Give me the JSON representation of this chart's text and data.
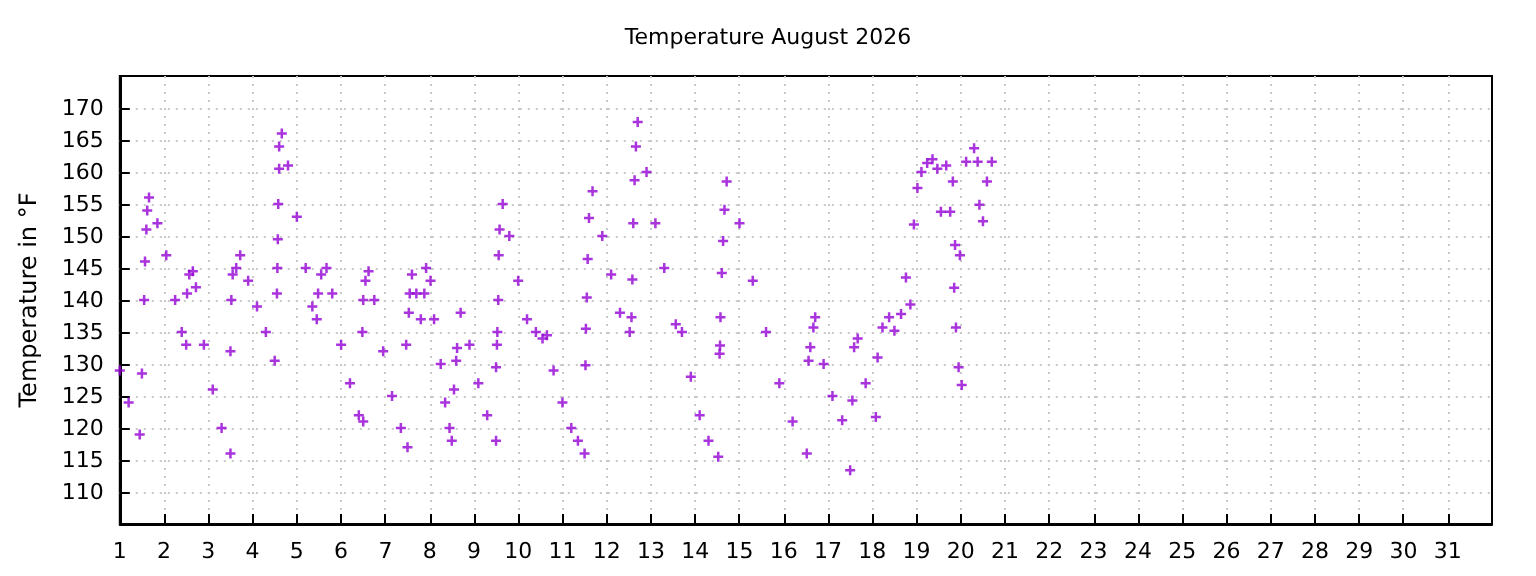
{
  "chart_data": {
    "type": "scatter",
    "title": "Temperature August 2026",
    "ylabel": "Temperature in °F",
    "xlim": [
      1,
      32
    ],
    "xticks": [
      1,
      2,
      3,
      4,
      5,
      6,
      7,
      8,
      9,
      10,
      11,
      12,
      13,
      14,
      15,
      16,
      17,
      18,
      19,
      20,
      21,
      22,
      23,
      24,
      25,
      26,
      27,
      28,
      29,
      30,
      31
    ],
    "ylim": [
      105,
      175
    ],
    "yticks": [
      110,
      115,
      120,
      125,
      130,
      135,
      140,
      145,
      150,
      155,
      160,
      165,
      170
    ],
    "grid": true,
    "marker": "cross",
    "series": [
      {
        "color": "#9400d3",
        "x": [
          1.0,
          1.2,
          1.45,
          1.5,
          1.55,
          1.57,
          1.6,
          1.62,
          1.66,
          1.85,
          2.05,
          2.25,
          2.4,
          2.5,
          2.52,
          2.57,
          2.65,
          2.72,
          2.9,
          3.1,
          3.3,
          3.5,
          3.5,
          3.52,
          3.55,
          3.63,
          3.72,
          3.9,
          4.1,
          4.3,
          4.5,
          4.55,
          4.56,
          4.57,
          4.58,
          4.6,
          4.6,
          4.66,
          4.8,
          5.0,
          5.2,
          5.35,
          5.45,
          5.48,
          5.55,
          5.67,
          5.8,
          6.0,
          6.2,
          6.4,
          6.5,
          6.48,
          6.5,
          6.55,
          6.62,
          6.75,
          6.95,
          7.15,
          7.35,
          7.5,
          7.47,
          7.53,
          7.55,
          7.6,
          7.7,
          7.8,
          7.88,
          7.92,
          8.02,
          8.1,
          8.25,
          8.35,
          8.45,
          8.5,
          8.55,
          8.6,
          8.62,
          8.7,
          8.9,
          9.1,
          9.3,
          9.5,
          9.5,
          9.52,
          9.53,
          9.55,
          9.56,
          9.58,
          9.65,
          9.8,
          10.0,
          10.2,
          10.4,
          10.55,
          10.65,
          10.8,
          11.0,
          11.2,
          11.35,
          11.5,
          11.52,
          11.53,
          11.55,
          11.57,
          11.6,
          11.68,
          11.9,
          12.1,
          12.3,
          12.52,
          12.56,
          12.58,
          12.6,
          12.63,
          12.66,
          12.7,
          12.9,
          13.1,
          13.3,
          13.56,
          13.7,
          13.9,
          14.1,
          14.3,
          14.52,
          14.55,
          14.56,
          14.57,
          14.6,
          14.63,
          14.66,
          14.71,
          15.0,
          15.3,
          15.6,
          15.9,
          16.2,
          16.52,
          16.56,
          16.6,
          16.67,
          16.71,
          16.9,
          17.1,
          17.32,
          17.5,
          17.55,
          17.59,
          17.67,
          17.85,
          18.08,
          18.12,
          18.23,
          18.38,
          18.5,
          18.65,
          18.76,
          18.86,
          18.94,
          19.02,
          19.11,
          19.24,
          19.36,
          19.47,
          19.55,
          19.67,
          19.76,
          19.82,
          19.85,
          19.87,
          19.89,
          19.95,
          20.02,
          19.98,
          20.12,
          20.3,
          20.38,
          20.42,
          20.5,
          20.59,
          20.7
        ],
        "values": [
          129,
          124,
          119,
          128.5,
          140,
          146,
          151,
          154,
          156,
          152,
          147,
          140,
          135,
          133,
          141,
          144,
          144.5,
          142,
          133,
          126,
          120,
          116,
          132,
          140,
          144,
          145,
          147,
          143,
          139,
          135,
          130.5,
          141,
          145,
          149.5,
          155,
          160.5,
          164,
          166,
          161,
          153,
          145,
          139,
          137,
          141,
          144,
          145,
          141,
          133,
          127,
          122,
          121,
          135,
          140,
          143,
          144.5,
          140,
          132,
          125,
          120,
          117,
          133,
          138,
          141,
          144,
          141,
          137,
          141,
          145,
          143,
          137,
          130,
          124,
          120,
          118,
          126,
          130.5,
          132.5,
          138,
          133,
          127,
          122,
          118,
          129.5,
          133,
          135,
          140,
          147,
          151,
          155,
          150,
          143,
          137,
          135,
          134,
          134.5,
          129,
          124,
          120,
          118,
          116,
          129.8,
          135.5,
          140.4,
          146.4,
          152.8,
          157,
          150,
          144,
          138,
          135,
          137.3,
          143.2,
          152,
          158.7,
          164,
          167.8,
          160,
          152,
          145,
          136.2,
          135,
          128,
          122,
          118,
          115.5,
          131.6,
          132.9,
          137.3,
          144.2,
          149.2,
          154.1,
          158.5,
          152,
          143,
          135,
          127,
          121,
          116,
          130.5,
          132.6,
          135.7,
          137.3,
          130,
          125,
          121.2,
          113.4,
          124.3,
          132.6,
          134,
          127,
          121.7,
          131,
          135.7,
          137.3,
          135.2,
          137.8,
          143.5,
          139.3,
          151.8,
          157.5,
          160,
          161.4,
          162,
          160.5,
          153.8,
          161,
          153.8,
          158.5,
          141.9,
          148.6,
          135.7,
          129.5,
          126.7,
          147,
          161.6,
          163.7,
          161.6,
          154.9,
          152.3,
          158.5,
          161.6
        ]
      }
    ]
  }
}
